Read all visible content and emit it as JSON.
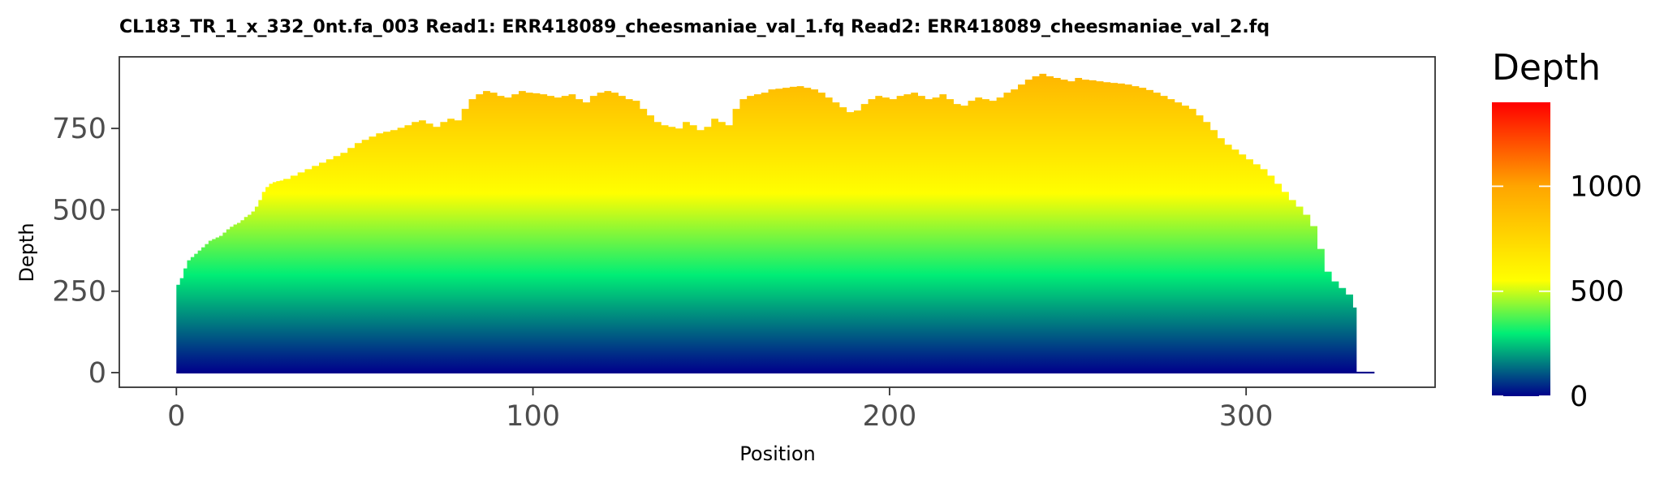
{
  "chart_data": {
    "type": "area",
    "title": "CL183_TR_1_x_332_0nt.fa_003   Read1: ERR418089_cheesmaniae_val_1.fq   Read2: ERR418089_cheesmaniae_val_2.fq",
    "xlabel": "Position",
    "ylabel": "Depth",
    "xlim": [
      -16,
      353
    ],
    "ylim": [
      -45,
      970
    ],
    "x_ticks": [
      0,
      100,
      200,
      300
    ],
    "x_tick_labels": [
      "0",
      "100",
      "200",
      "300"
    ],
    "y_ticks": [
      0,
      250,
      500,
      750
    ],
    "y_tick_labels": [
      "0",
      "250",
      "500",
      "750"
    ],
    "grid": false,
    "step": true,
    "fill": "vertical gradient by depth",
    "series": [
      {
        "x": [
          0,
          1,
          2,
          3,
          4,
          5,
          6,
          7,
          8,
          9,
          10,
          11,
          12,
          13,
          14,
          15,
          16,
          17,
          18,
          19,
          20,
          21,
          22,
          23,
          24,
          25,
          26,
          27,
          28,
          29,
          30,
          32,
          34,
          36,
          38,
          40,
          42,
          44,
          46,
          48,
          50,
          52,
          54,
          56,
          58,
          60,
          62,
          64,
          66,
          68,
          70,
          72,
          74,
          76,
          78,
          80,
          82,
          84,
          86,
          88,
          90,
          92,
          94,
          96,
          98,
          100,
          102,
          104,
          106,
          108,
          110,
          112,
          114,
          116,
          118,
          120,
          122,
          124,
          126,
          128,
          130,
          132,
          134,
          136,
          138,
          140,
          142,
          144,
          146,
          148,
          150,
          152,
          154,
          156,
          158,
          160,
          162,
          164,
          166,
          168,
          170,
          172,
          174,
          176,
          178,
          180,
          182,
          184,
          186,
          188,
          190,
          192,
          194,
          196,
          198,
          200,
          202,
          204,
          206,
          208,
          210,
          212,
          214,
          216,
          218,
          220,
          222,
          224,
          226,
          228,
          230,
          232,
          234,
          236,
          238,
          240,
          242,
          244,
          246,
          248,
          250,
          252,
          254,
          256,
          258,
          260,
          262,
          264,
          266,
          268,
          270,
          272,
          274,
          276,
          278,
          280,
          282,
          284,
          286,
          288,
          290,
          292,
          294,
          296,
          298,
          300,
          302,
          304,
          306,
          308,
          310,
          312,
          314,
          316,
          318,
          320,
          322,
          324,
          326,
          328,
          330,
          331,
          332,
          336
        ],
        "y": [
          270,
          290,
          320,
          345,
          355,
          365,
          375,
          385,
          395,
          405,
          410,
          415,
          420,
          430,
          440,
          448,
          455,
          460,
          468,
          478,
          485,
          495,
          510,
          530,
          555,
          570,
          580,
          585,
          588,
          590,
          595,
          605,
          615,
          625,
          635,
          645,
          655,
          665,
          675,
          690,
          705,
          715,
          725,
          735,
          740,
          745,
          752,
          760,
          770,
          775,
          765,
          755,
          770,
          780,
          775,
          810,
          840,
          855,
          865,
          860,
          850,
          845,
          855,
          865,
          860,
          858,
          855,
          850,
          845,
          850,
          855,
          840,
          830,
          850,
          860,
          865,
          860,
          850,
          840,
          835,
          810,
          790,
          770,
          760,
          755,
          750,
          770,
          760,
          745,
          755,
          780,
          770,
          760,
          810,
          840,
          850,
          855,
          860,
          870,
          872,
          875,
          878,
          880,
          875,
          870,
          860,
          845,
          830,
          815,
          800,
          805,
          825,
          840,
          850,
          845,
          840,
          850,
          855,
          860,
          850,
          840,
          845,
          855,
          840,
          825,
          820,
          835,
          845,
          840,
          835,
          845,
          860,
          870,
          885,
          900,
          910,
          918,
          910,
          905,
          900,
          895,
          905,
          900,
          898,
          895,
          892,
          890,
          888,
          885,
          880,
          875,
          868,
          860,
          850,
          840,
          830,
          820,
          810,
          790,
          770,
          745,
          720,
          700,
          685,
          670,
          655,
          640,
          625,
          605,
          580,
          555,
          530,
          510,
          485,
          450,
          380,
          310,
          280,
          260,
          240,
          200,
          0,
          0,
          0
        ]
      }
    ],
    "legend": {
      "title": "Depth",
      "placement": "right",
      "min": 0,
      "max": 1400,
      "ticks": [
        0,
        500,
        1000
      ],
      "tick_labels": [
        "0",
        "500",
        "1000"
      ],
      "colors": [
        "#00008b",
        "#00ee76",
        "#ffff00",
        "#ffa500",
        "#ff0000"
      ],
      "color_stops": [
        0,
        300,
        550,
        1000,
        1400
      ]
    },
    "colors": {
      "panel_border": "#333333",
      "tick_color": "#333333",
      "tick_text": "#4d4d4d",
      "baseline": "#00008b"
    }
  }
}
